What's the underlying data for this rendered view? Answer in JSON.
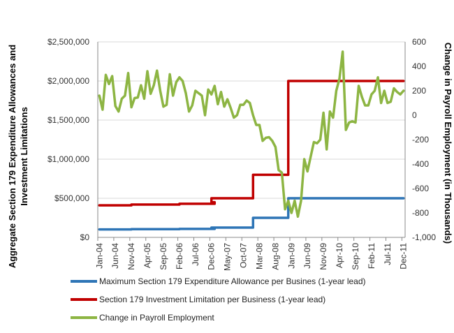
{
  "chart_data": {
    "type": "line",
    "title": "",
    "y_left": {
      "label": "Aggregate Section 179 Expenditure Allowances and Investment Limitations",
      "label_lines": [
        "Aggregate Section 179 Expenditure Allowances and",
        "Investment Limitations"
      ],
      "ticks": [
        "$0",
        "$500,000",
        "$1,000,000",
        "$1,500,000",
        "$2,000,000",
        "$2,500,000"
      ],
      "tick_values": [
        0,
        500000,
        1000000,
        1500000,
        2000000,
        2500000
      ],
      "range": [
        0,
        2500000
      ]
    },
    "y_right": {
      "label": "Change in Payroll Employment (in Thousands)",
      "ticks": [
        "-1,000",
        "-800",
        "-600",
        "-400",
        "-200",
        "0",
        "200",
        "400",
        "600"
      ],
      "tick_values": [
        -1000,
        -800,
        -600,
        -400,
        -200,
        0,
        200,
        400,
        600
      ],
      "range": [
        -1000,
        600
      ]
    },
    "x": {
      "start": "Jan-04",
      "end": "Dec-11",
      "months": 96,
      "tick_labels": [
        "Jan-04",
        "Jun-04",
        "Nov-04",
        "Apr-05",
        "Sep-05",
        "Feb-06",
        "Jul-06",
        "Dec-06",
        "May-07",
        "Oct-07",
        "Mar-08",
        "Aug-08",
        "Jan-09",
        "Jun-09",
        "Nov-09",
        "Apr-10",
        "Sep-10",
        "Feb-11",
        "Jul-11",
        "Dec-11"
      ],
      "tick_month_index": [
        0,
        5,
        10,
        15,
        20,
        25,
        30,
        35,
        40,
        45,
        50,
        55,
        60,
        65,
        70,
        75,
        80,
        85,
        90,
        95
      ]
    },
    "grid": "horizontal",
    "legend_position": "bottom",
    "series": [
      {
        "name": "Maximum Section 179 Expenditure Allowance per Busines (1-year lead)",
        "axis": "left",
        "color": "#2e75b6",
        "step": true,
        "points": [
          [
            "Jan-04",
            102000
          ],
          [
            "Nov-04",
            105000
          ],
          [
            "Feb-06",
            108000
          ],
          [
            "Jan-07",
            112000
          ],
          [
            "Dec-06",
            125000
          ],
          [
            "Jan-08",
            250000
          ],
          [
            "Nov-08",
            250000
          ],
          [
            "Dec-08",
            500000
          ],
          [
            "Dec-11",
            500000
          ]
        ]
      },
      {
        "name": "Section 179 Investment Limitation per Business (1-year lead)",
        "axis": "left",
        "color": "#c00000",
        "step": true,
        "points": [
          [
            "Jan-04",
            410000
          ],
          [
            "Nov-04",
            420000
          ],
          [
            "Feb-06",
            430000
          ],
          [
            "Jan-07",
            450000
          ],
          [
            "Dec-06",
            500000
          ],
          [
            "Jan-08",
            800000
          ],
          [
            "Nov-08",
            800000
          ],
          [
            "Dec-08",
            2000000
          ],
          [
            "Dec-11",
            2000000
          ]
        ]
      },
      {
        "name": "Change in Payroll Employment",
        "axis": "right",
        "color": "#8db543",
        "step": false,
        "values": [
          160,
          45,
          330,
          255,
          320,
          75,
          30,
          135,
          160,
          345,
          65,
          140,
          145,
          245,
          135,
          360,
          175,
          245,
          365,
          200,
          70,
          85,
          335,
          160,
          270,
          310,
          280,
          180,
          30,
          80,
          200,
          180,
          160,
          0,
          210,
          170,
          240,
          90,
          190,
          70,
          130,
          60,
          -20,
          0,
          85,
          85,
          120,
          100,
          0,
          -80,
          -80,
          -210,
          -185,
          -180,
          -210,
          -260,
          -450,
          -470,
          -770,
          -700,
          -800,
          -700,
          -830,
          -700,
          -360,
          -460,
          -340,
          -220,
          -230,
          -200,
          20,
          -280,
          30,
          -20,
          200,
          300,
          520,
          -120,
          -60,
          -50,
          -60,
          240,
          150,
          80,
          80,
          170,
          200,
          310,
          100,
          200,
          100,
          110,
          220,
          190,
          170,
          200
        ]
      }
    ]
  }
}
